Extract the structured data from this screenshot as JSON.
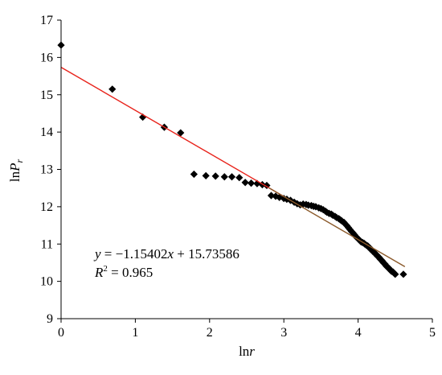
{
  "chart_data": {
    "type": "scatter",
    "xlabel": {
      "prefix": "ln",
      "var": "r"
    },
    "ylabel": {
      "prefix": "ln",
      "var": "P",
      "sub": "r"
    },
    "xlim": [
      0,
      5
    ],
    "ylim": [
      9,
      17
    ],
    "x_ticks": [
      "0",
      "1",
      "2",
      "3",
      "4",
      "5"
    ],
    "y_ticks": [
      "9",
      "10",
      "11",
      "12",
      "13",
      "14",
      "15",
      "16",
      "17"
    ],
    "grid": false,
    "series": [
      {
        "marker": "diamond",
        "color": "#000000",
        "points": [
          [
            0.0,
            16.33
          ],
          [
            0.69,
            15.15
          ],
          [
            1.1,
            14.4
          ],
          [
            1.39,
            14.13
          ],
          [
            1.61,
            13.98
          ],
          [
            1.79,
            12.87
          ],
          [
            1.95,
            12.83
          ],
          [
            2.08,
            12.82
          ],
          [
            2.2,
            12.8
          ],
          [
            2.3,
            12.8
          ],
          [
            2.4,
            12.78
          ],
          [
            2.48,
            12.65
          ],
          [
            2.56,
            12.63
          ],
          [
            2.64,
            12.62
          ],
          [
            2.71,
            12.59
          ],
          [
            2.77,
            12.57
          ],
          [
            2.83,
            12.3
          ],
          [
            2.89,
            12.28
          ],
          [
            2.94,
            12.25
          ],
          [
            3.0,
            12.22
          ],
          [
            3.04,
            12.2
          ],
          [
            3.09,
            12.17
          ],
          [
            3.14,
            12.12
          ],
          [
            3.18,
            12.08
          ],
          [
            3.22,
            12.05
          ],
          [
            3.26,
            12.07
          ],
          [
            3.3,
            12.06
          ],
          [
            3.33,
            12.04
          ],
          [
            3.37,
            12.03
          ],
          [
            3.4,
            12.01
          ],
          [
            3.43,
            12.0
          ],
          [
            3.47,
            11.97
          ],
          [
            3.5,
            11.95
          ],
          [
            3.53,
            11.92
          ],
          [
            3.56,
            11.88
          ],
          [
            3.58,
            11.85
          ],
          [
            3.61,
            11.82
          ],
          [
            3.64,
            11.8
          ],
          [
            3.66,
            11.77
          ],
          [
            3.69,
            11.74
          ],
          [
            3.71,
            11.71
          ],
          [
            3.74,
            11.68
          ],
          [
            3.76,
            11.65
          ],
          [
            3.78,
            11.62
          ],
          [
            3.81,
            11.58
          ],
          [
            3.83,
            11.53
          ],
          [
            3.85,
            11.49
          ],
          [
            3.87,
            11.44
          ],
          [
            3.89,
            11.39
          ],
          [
            3.91,
            11.34
          ],
          [
            3.93,
            11.3
          ],
          [
            3.95,
            11.25
          ],
          [
            3.97,
            11.2
          ],
          [
            3.99,
            11.16
          ],
          [
            4.01,
            11.12
          ],
          [
            4.03,
            11.08
          ],
          [
            4.04,
            11.06
          ],
          [
            4.06,
            11.04
          ],
          [
            4.08,
            11.02
          ],
          [
            4.09,
            11.0
          ],
          [
            4.11,
            10.97
          ],
          [
            4.13,
            10.95
          ],
          [
            4.14,
            10.92
          ],
          [
            4.16,
            10.89
          ],
          [
            4.17,
            10.86
          ],
          [
            4.19,
            10.83
          ],
          [
            4.2,
            10.8
          ],
          [
            4.22,
            10.77
          ],
          [
            4.23,
            10.74
          ],
          [
            4.25,
            10.71
          ],
          [
            4.26,
            10.68
          ],
          [
            4.28,
            10.65
          ],
          [
            4.29,
            10.62
          ],
          [
            4.3,
            10.59
          ],
          [
            4.32,
            10.56
          ],
          [
            4.33,
            10.53
          ],
          [
            4.34,
            10.5
          ],
          [
            4.36,
            10.47
          ],
          [
            4.37,
            10.44
          ],
          [
            4.38,
            10.41
          ],
          [
            4.39,
            10.39
          ],
          [
            4.41,
            10.36
          ],
          [
            4.42,
            10.34
          ],
          [
            4.43,
            10.31
          ],
          [
            4.44,
            10.29
          ],
          [
            4.45,
            10.27
          ],
          [
            4.47,
            10.25
          ],
          [
            4.48,
            10.23
          ],
          [
            4.49,
            10.21
          ],
          [
            4.5,
            10.19
          ],
          [
            4.61,
            10.19
          ]
        ]
      }
    ],
    "fit_lines": [
      {
        "color": "#e8231b",
        "slope": -1.15402,
        "intercept": 15.73586,
        "x_range": [
          0,
          3.0
        ]
      },
      {
        "color": "#8b5a2b",
        "slope": -1.15402,
        "intercept": 15.73586,
        "x_range": [
          2.8,
          4.63
        ]
      }
    ],
    "annotation": {
      "eq_y": "y",
      "eq_equals": " = −1.15402",
      "eq_x": "x",
      "eq_rest": " + 15.73586",
      "r2_label": "R",
      "r2_exp": "2",
      "r2_value": " = 0.965"
    }
  }
}
